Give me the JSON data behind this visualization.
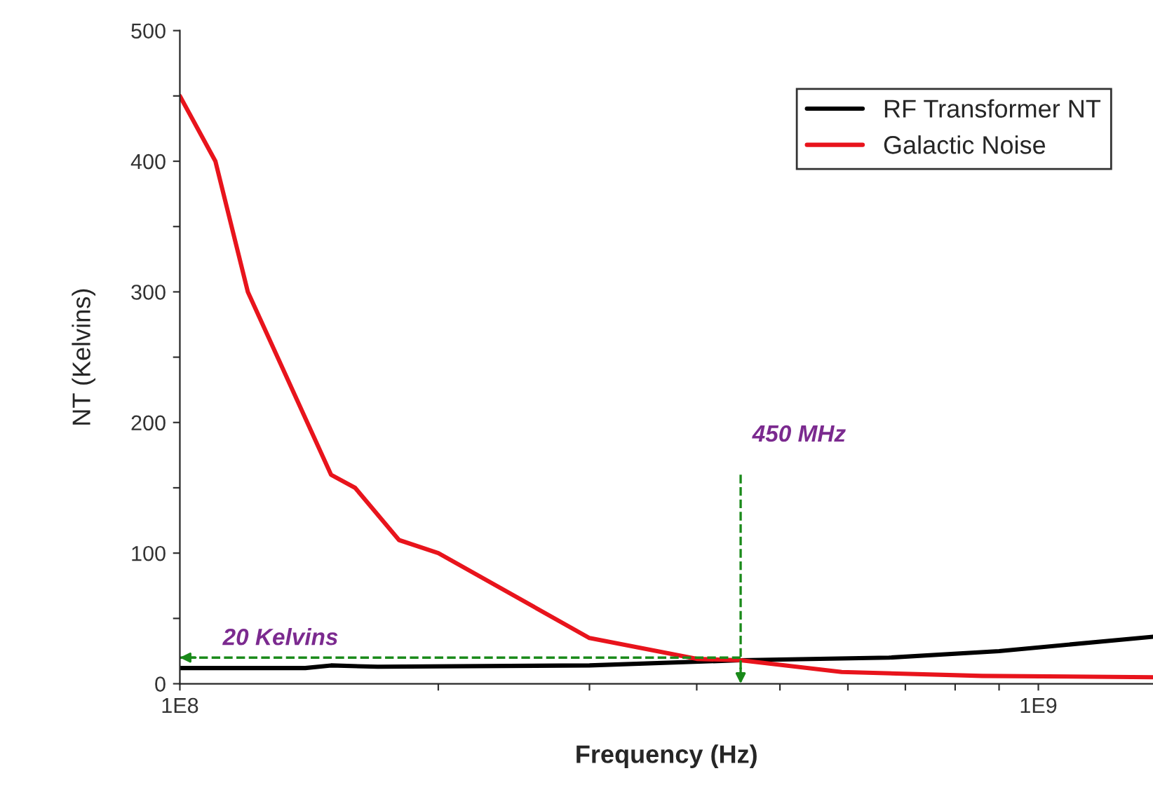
{
  "chart_data": {
    "type": "line",
    "xlabel": "Frequency (Hz)",
    "ylabel": "NT (Kelvins)",
    "log": "x",
    "xlim": [
      100000000,
      1360000000
    ],
    "ylim": [
      0,
      500
    ],
    "xticks": [
      {
        "value": 100000000,
        "label": "1E8"
      },
      {
        "value": 200000000,
        "label": null
      },
      {
        "value": 300000000,
        "label": null
      },
      {
        "value": 400000000,
        "label": null
      },
      {
        "value": 500000000,
        "label": null
      },
      {
        "value": 600000000,
        "label": null
      },
      {
        "value": 700000000,
        "label": null
      },
      {
        "value": 800000000,
        "label": null
      },
      {
        "value": 900000000,
        "label": null
      },
      {
        "value": 1000000000,
        "label": "1E9"
      }
    ],
    "yticks": [
      0,
      {
        "value": 50,
        "label": null
      },
      100,
      {
        "value": 150,
        "label": null
      },
      200,
      {
        "value": 250,
        "label": null
      },
      300,
      {
        "value": 350,
        "label": null
      },
      400,
      {
        "value": 450,
        "label": null
      },
      500
    ],
    "grid": false,
    "legend": "top right",
    "marker": "none",
    "line_style": "solid",
    "series": [
      {
        "name": "RF Transformer NT",
        "color": "#000000",
        "x": [
          100000000,
          140000000,
          150000000,
          170000000,
          300000000,
          450000000,
          670000000,
          900000000,
          1360000000
        ],
        "values": [
          12,
          12,
          14,
          13,
          14,
          18,
          20,
          25,
          36
        ]
      },
      {
        "name": "Galactic Noise",
        "color": "#e8141c",
        "x": [
          100000000,
          110000000,
          120000000,
          150000000,
          160000000,
          180000000,
          200000000,
          300000000,
          400000000,
          450000000,
          590000000,
          860000000,
          1360000000
        ],
        "values": [
          450,
          400,
          300,
          160,
          150,
          110,
          100,
          35,
          19,
          18,
          9,
          6,
          5
        ]
      }
    ],
    "ref_lines": [
      {
        "axis": "y",
        "value": 20,
        "label": "20 Kelvins",
        "color": "#1a8a1a",
        "line_style": "dashed"
      },
      {
        "axis": "x",
        "value": 450000000,
        "label": "450 MHz",
        "color": "#1a8a1a",
        "line_style": "dashed"
      }
    ]
  }
}
